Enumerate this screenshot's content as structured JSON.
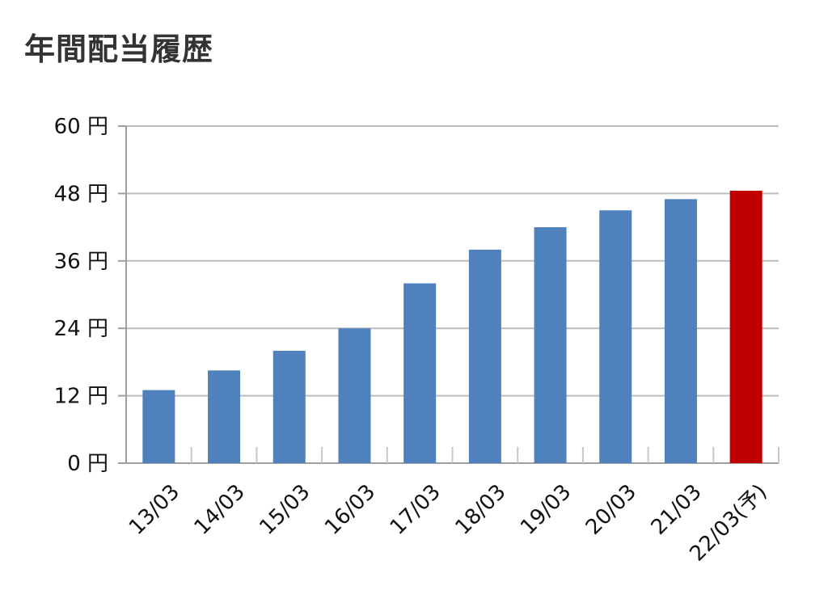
{
  "chart_data": {
    "type": "bar",
    "title": "年間配当履歴",
    "categories": [
      "13/03",
      "14/03",
      "15/03",
      "16/03",
      "17/03",
      "18/03",
      "19/03",
      "20/03",
      "21/03",
      "22/03(予)"
    ],
    "values": [
      13,
      16.5,
      20,
      24,
      32,
      38,
      42,
      45,
      47,
      48.5
    ],
    "bar_colors": [
      "#4f81bd",
      "#4f81bd",
      "#4f81bd",
      "#4f81bd",
      "#4f81bd",
      "#4f81bd",
      "#4f81bd",
      "#4f81bd",
      "#4f81bd",
      "#c00000"
    ],
    "y_ticks": [
      "0 円",
      "12 円",
      "24 円",
      "36 円",
      "48 円",
      "60 円"
    ],
    "y_tick_values": [
      0,
      12,
      24,
      36,
      48,
      60
    ],
    "ylim": [
      0,
      60
    ],
    "xlabel": "",
    "ylabel": "",
    "grid": true,
    "legend": "none"
  }
}
